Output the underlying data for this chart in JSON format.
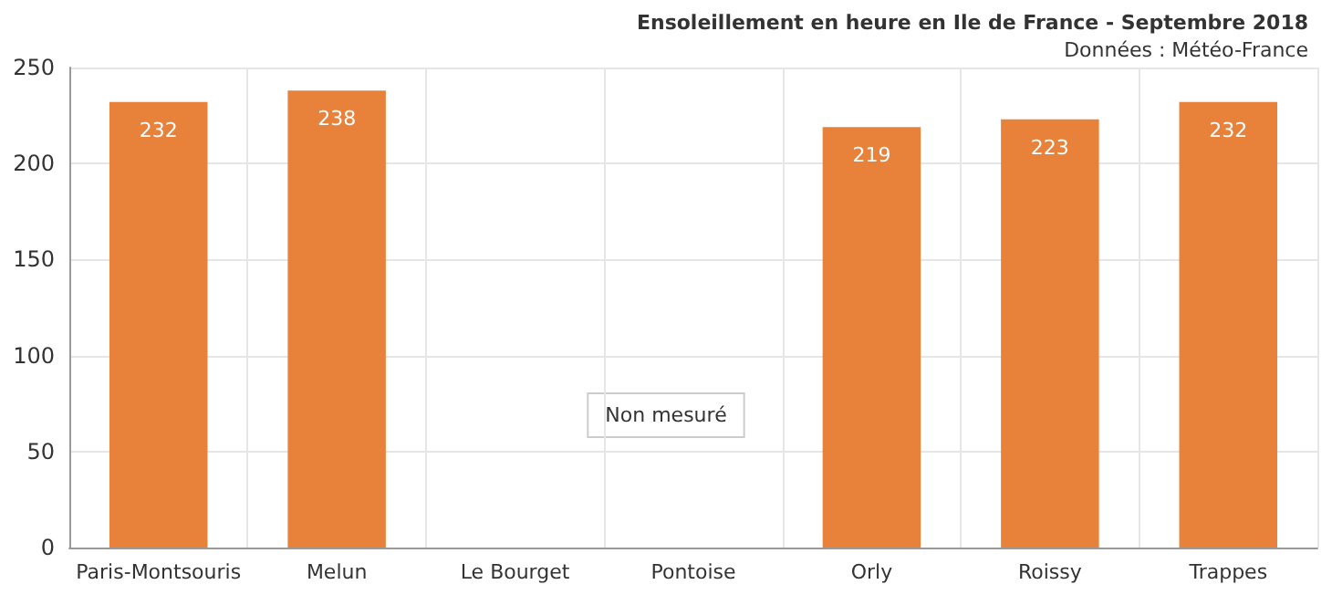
{
  "chart_data": {
    "type": "bar",
    "title": "Ensoleillement en heure en Ile de France - Septembre 2018",
    "subtitle": "Données : Météo-France",
    "categories": [
      "Paris-Montsouris",
      "Melun",
      "Le Bourget",
      "Pontoise",
      "Orly",
      "Roissy",
      "Trappes"
    ],
    "values": [
      232,
      238,
      null,
      null,
      219,
      223,
      232
    ],
    "color": "#e8823a",
    "ylim": [
      0,
      250
    ],
    "yticks": [
      0,
      50,
      100,
      150,
      200,
      250
    ],
    "grid": true,
    "data_labels": true,
    "annotations": [
      "Non mesuré"
    ]
  }
}
